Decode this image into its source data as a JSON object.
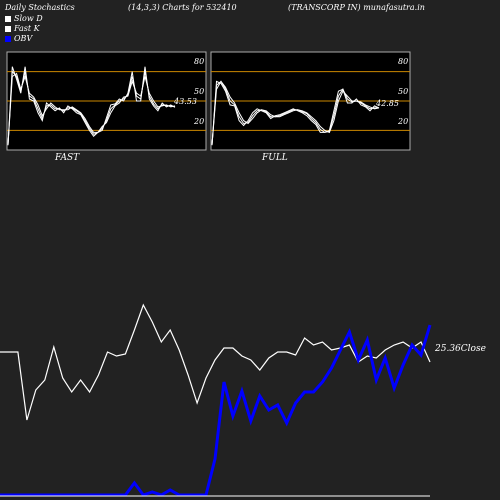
{
  "header": {
    "left": "Daily Stochastics",
    "middle": "(14,3,3) Charts for 532410",
    "right": "(TRANSCORP IN) munafasutra.in"
  },
  "legend": [
    {
      "label": "Slow  D",
      "color": "#ffffff"
    },
    {
      "label": "Fast K",
      "color": "#ffffff"
    },
    {
      "label": "OBV",
      "color": "#0000ff"
    }
  ],
  "colors": {
    "background": "#222222",
    "panel": "#000000",
    "grid": "#cc8800",
    "stoch": "#ffffff",
    "obv": "#0000ff",
    "price": "#ffffff"
  },
  "chart_data": [
    {
      "type": "line",
      "title": "FAST",
      "ylim": [
        0,
        100
      ],
      "yticks": [
        20,
        50,
        80
      ],
      "reference_lines": [
        20,
        50,
        80
      ],
      "last_value_label": "43.53",
      "series": [
        {
          "values": [
            5,
            85,
            72,
            58,
            85,
            52,
            50,
            38,
            30,
            48,
            44,
            40,
            43,
            38,
            45,
            42,
            38,
            36,
            28,
            20,
            14,
            18,
            20,
            33,
            46,
            47,
            52,
            50,
            58,
            80,
            50,
            50,
            85,
            52,
            45,
            40,
            48,
            44,
            46,
            43.53
          ]
        },
        {
          "values": [
            5,
            80,
            75,
            60,
            80,
            55,
            52,
            42,
            32,
            45,
            46,
            42,
            42,
            40,
            43,
            43,
            40,
            37,
            30,
            22,
            16,
            18,
            22,
            30,
            42,
            46,
            50,
            52,
            56,
            75,
            55,
            52,
            80,
            55,
            47,
            42,
            46,
            45,
            45,
            44
          ]
        },
        {
          "values": [
            5,
            75,
            78,
            62,
            75,
            58,
            54,
            46,
            35,
            42,
            48,
            44,
            41,
            41,
            41,
            44,
            41,
            38,
            32,
            24,
            18,
            18,
            24,
            28,
            38,
            45,
            48,
            54,
            55,
            70,
            58,
            55,
            75,
            58,
            50,
            44,
            45,
            46,
            44,
            45
          ]
        }
      ]
    },
    {
      "type": "line",
      "title": "FULL",
      "ylim": [
        0,
        100
      ],
      "yticks": [
        20,
        50,
        80
      ],
      "reference_lines": [
        20,
        50,
        80
      ],
      "last_value_label": "42.85",
      "series": [
        {
          "values": [
            5,
            70,
            68,
            60,
            46,
            45,
            30,
            25,
            30,
            38,
            42,
            40,
            38,
            32,
            35,
            36,
            38,
            40,
            42,
            40,
            38,
            35,
            30,
            26,
            18,
            18,
            20,
            40,
            60,
            62,
            48,
            48,
            52,
            46,
            44,
            40,
            45,
            42.85
          ]
        },
        {
          "values": [
            5,
            66,
            70,
            62,
            50,
            46,
            34,
            27,
            28,
            35,
            40,
            41,
            39,
            34,
            34,
            35,
            37,
            39,
            41,
            41,
            39,
            37,
            32,
            28,
            21,
            18,
            19,
            35,
            55,
            62,
            52,
            49,
            50,
            48,
            45,
            42,
            43,
            43
          ]
        },
        {
          "values": [
            5,
            62,
            70,
            64,
            54,
            48,
            38,
            30,
            27,
            32,
            38,
            41,
            40,
            36,
            34,
            34,
            36,
            38,
            40,
            41,
            40,
            38,
            34,
            30,
            24,
            20,
            18,
            30,
            50,
            60,
            55,
            50,
            50,
            49,
            46,
            44,
            42,
            43
          ]
        }
      ]
    },
    {
      "type": "line",
      "series": [
        {
          "name": "Close",
          "last_value_label": "25.36Close",
          "values": [
            352,
            352,
            352,
            420,
            390,
            380,
            347,
            378,
            392,
            380,
            392,
            375,
            352,
            356,
            354,
            330,
            305,
            322,
            342,
            330,
            350,
            375,
            403,
            378,
            360,
            348,
            348,
            356,
            360,
            370,
            358,
            352,
            352,
            355,
            338,
            345,
            342,
            350,
            348,
            345,
            362,
            356,
            358,
            350,
            345,
            342,
            348,
            342,
            362
          ]
        },
        {
          "name": "OBV",
          "values": [
            495,
            495,
            495,
            495,
            495,
            495,
            495,
            495,
            495,
            495,
            495,
            495,
            495,
            495,
            495,
            483,
            495,
            492,
            495,
            490,
            495,
            495,
            495,
            495,
            459,
            382,
            416,
            391,
            421,
            396,
            410,
            405,
            423,
            403,
            392,
            392,
            382,
            368,
            350,
            332,
            360,
            340,
            380,
            358,
            388,
            365,
            345,
            355,
            325
          ]
        }
      ]
    }
  ],
  "panels": {
    "fast_label": "FAST",
    "full_label": "FULL",
    "fast_ticks": [
      "80",
      "50",
      "20"
    ],
    "full_ticks": [
      "80",
      "50",
      "20"
    ],
    "fast_last": "43.53",
    "full_last": "42.85",
    "close_label": "25.36Close"
  }
}
